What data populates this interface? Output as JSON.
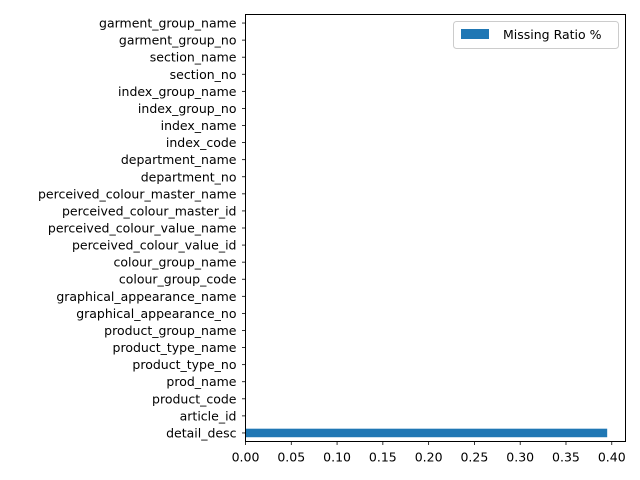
{
  "chart_data": {
    "type": "bar",
    "orientation": "horizontal",
    "categories": [
      "detail_desc",
      "article_id",
      "product_code",
      "prod_name",
      "product_type_no",
      "product_type_name",
      "product_group_name",
      "graphical_appearance_no",
      "graphical_appearance_name",
      "colour_group_code",
      "colour_group_name",
      "perceived_colour_value_id",
      "perceived_colour_value_name",
      "perceived_colour_master_id",
      "perceived_colour_master_name",
      "department_no",
      "department_name",
      "index_code",
      "index_name",
      "index_group_no",
      "index_group_name",
      "section_no",
      "section_name",
      "garment_group_no",
      "garment_group_name"
    ],
    "series": [
      {
        "name": "Missing Ratio %",
        "color": "#1f77b4",
        "values": [
          0.395,
          0,
          0,
          0,
          0,
          0,
          0,
          0,
          0,
          0,
          0,
          0,
          0,
          0,
          0,
          0,
          0,
          0,
          0,
          0,
          0,
          0,
          0,
          0,
          0
        ]
      }
    ],
    "xticks": [
      "0.00",
      "0.05",
      "0.10",
      "0.15",
      "0.20",
      "0.25",
      "0.30",
      "0.35",
      "0.40"
    ],
    "xlim": [
      0,
      0.415
    ],
    "title": "",
    "xlabel": "",
    "ylabel": "",
    "grid": false,
    "legend_position": "upper right"
  }
}
